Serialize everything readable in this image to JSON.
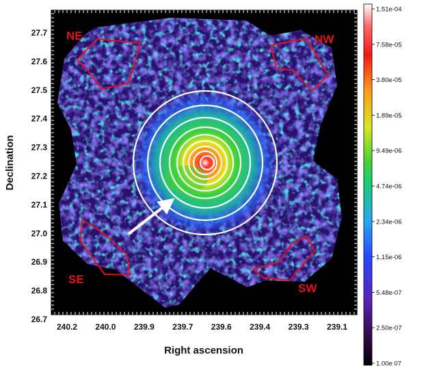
{
  "figure": {
    "xlabel": "Right ascension",
    "ylabel": "Declination",
    "x_ticks": [
      "240.2",
      "240.0",
      "239.9",
      "239.7",
      "239.6",
      "239.4",
      "239.3",
      "239.1"
    ],
    "y_ticks": [
      "27.7",
      "27.6",
      "27.5",
      "27.4",
      "27.3",
      "27.2",
      "27.1",
      "27.0",
      "26.9",
      "26.8",
      "26.7"
    ],
    "region_labels": {
      "ne": "NE",
      "nw": "NW",
      "se": "SE",
      "sw": "SW"
    },
    "colorbar": {
      "scale": "log",
      "labels": [
        "1.51e-04",
        "7.58e-05",
        "3.80e-05",
        "1.89e-05",
        "9.49e-06",
        "4.74e-06",
        "2.34e-06",
        "1.15e-06",
        "5.48e-07",
        "2.50e-07",
        "1.00e 07"
      ],
      "colormap": [
        "#000000",
        "#3a0a52",
        "#5a23b8",
        "#2747ff",
        "#27a8f0",
        "#18cc7a",
        "#3fd23a",
        "#d8e623",
        "#ff9c1c",
        "#f21818",
        "#ff6a6a",
        "#ffffff"
      ]
    },
    "colors": {
      "region_outline": "#e3121b",
      "contours": "#ffffff",
      "arrow": "#ffffff",
      "background": "#000000"
    }
  }
}
